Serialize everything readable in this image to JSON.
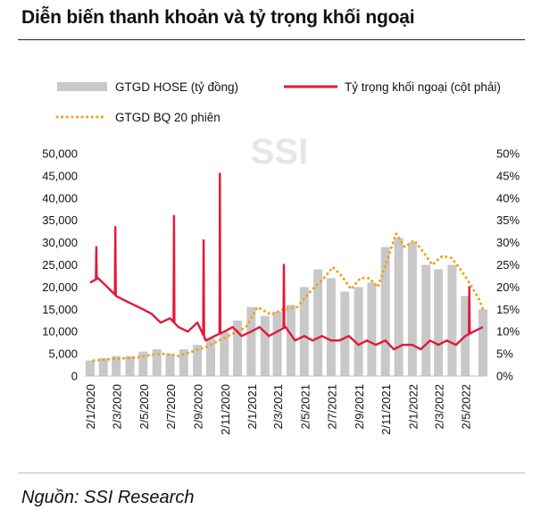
{
  "title": "Diễn biến thanh khoản và tỷ trọng khối ngoại",
  "source": "Nguồn: SSI Research",
  "watermark": "SSI",
  "colors": {
    "bars": "#c8c8c8",
    "line": "#e0193b",
    "dots": "#f0a020",
    "text": "#111111"
  },
  "chart_data": {
    "type": "bar",
    "combo": [
      "bar",
      "line",
      "dotted-line"
    ],
    "x_tick_labels": [
      "2/1/2020",
      "2/3/2020",
      "2/5/2020",
      "2/7/2020",
      "2/9/2020",
      "2/11/2020",
      "2/1/2021",
      "2/3/2021",
      "2/5/2021",
      "2/7/2021",
      "2/9/2021",
      "2/11/2021",
      "2/1/2022",
      "2/3/2022",
      "2/5/2022"
    ],
    "x_tick_dates": [
      "2020-01-02",
      "2020-03-02",
      "2020-05-02",
      "2020-07-02",
      "2020-09-02",
      "2020-11-02",
      "2021-01-02",
      "2021-03-02",
      "2021-05-02",
      "2021-07-02",
      "2021-09-02",
      "2021-11-02",
      "2022-01-02",
      "2022-03-02",
      "2022-05-02"
    ],
    "x_range": [
      "2020-01-02",
      "2022-06-10"
    ],
    "y_left": {
      "ticks": [
        "0",
        "5,000",
        "10,000",
        "15,000",
        "20,000",
        "25,000",
        "30,000",
        "35,000",
        "40,000",
        "45,000",
        "50,000"
      ],
      "range": [
        0,
        50000
      ]
    },
    "y_right": {
      "ticks": [
        "0%",
        "5%",
        "10%",
        "15%",
        "20%",
        "25%",
        "30%",
        "35%",
        "40%",
        "45%",
        "50%"
      ],
      "range": [
        0,
        50
      ]
    },
    "legend": {
      "position": "top",
      "items": [
        "GTGD HOSE (tỷ đồng)",
        "Tỷ trọng khối ngoại (cột phải)",
        "GTGD BQ 20 phiên"
      ]
    },
    "series": [
      {
        "name": "GTGD HOSE (tỷ đồng)",
        "axis": "left",
        "kind": "bar",
        "x": [
          "2020-01-02",
          "2020-02-01",
          "2020-03-01",
          "2020-04-01",
          "2020-05-01",
          "2020-06-01",
          "2020-07-01",
          "2020-08-01",
          "2020-09-01",
          "2020-10-01",
          "2020-11-01",
          "2020-12-01",
          "2021-01-01",
          "2021-02-01",
          "2021-03-01",
          "2021-04-01",
          "2021-05-01",
          "2021-06-01",
          "2021-07-01",
          "2021-08-01",
          "2021-09-01",
          "2021-10-01",
          "2021-11-01",
          "2021-12-01",
          "2022-01-01",
          "2022-02-01",
          "2022-03-01",
          "2022-04-01",
          "2022-05-01",
          "2022-06-10"
        ],
        "values": [
          3500,
          4000,
          4500,
          4500,
          5500,
          6000,
          5000,
          6000,
          7000,
          8500,
          10000,
          12500,
          15500,
          13500,
          14500,
          16000,
          20000,
          24000,
          22000,
          19000,
          20000,
          21000,
          29000,
          31000,
          30000,
          25000,
          24000,
          25000,
          18000,
          15000
        ]
      },
      {
        "name": "GTGD BQ 20 phiên",
        "axis": "left",
        "kind": "dotted-line",
        "x": [
          "2020-01-10",
          "2020-02-15",
          "2020-03-20",
          "2020-04-20",
          "2020-05-20",
          "2020-06-20",
          "2020-07-20",
          "2020-08-20",
          "2020-09-20",
          "2020-10-20",
          "2020-11-20",
          "2020-12-20",
          "2021-01-15",
          "2021-02-15",
          "2021-03-15",
          "2021-04-15",
          "2021-05-15",
          "2021-06-15",
          "2021-07-05",
          "2021-07-25",
          "2021-08-15",
          "2021-09-05",
          "2021-09-25",
          "2021-10-15",
          "2021-11-05",
          "2021-11-25",
          "2021-12-15",
          "2022-01-05",
          "2022-01-25",
          "2022-02-15",
          "2022-03-10",
          "2022-03-31",
          "2022-04-20",
          "2022-05-10",
          "2022-05-31",
          "2022-06-10"
        ],
        "values": [
          3500,
          3800,
          4000,
          4200,
          4800,
          5000,
          4500,
          5500,
          6500,
          8000,
          9500,
          11000,
          15500,
          13800,
          15000,
          15500,
          19000,
          22000,
          24500,
          22500,
          19500,
          22000,
          22000,
          20000,
          26000,
          32000,
          29000,
          30500,
          28000,
          25000,
          27000,
          26500,
          24000,
          21000,
          17500,
          15000
        ]
      },
      {
        "name": "Tỷ trọng khối ngoại (cột phải)",
        "axis": "right",
        "kind": "line",
        "x": [
          "2020-01-02",
          "2020-01-20",
          "2020-02-10",
          "2020-03-01",
          "2020-03-20",
          "2020-04-10",
          "2020-05-01",
          "2020-05-20",
          "2020-06-10",
          "2020-07-01",
          "2020-07-20",
          "2020-08-10",
          "2020-09-01",
          "2020-09-20",
          "2020-10-10",
          "2020-11-01",
          "2020-11-20",
          "2020-12-10",
          "2021-01-01",
          "2021-01-20",
          "2021-02-10",
          "2021-03-01",
          "2021-03-20",
          "2021-04-10",
          "2021-05-01",
          "2021-05-20",
          "2021-06-10",
          "2021-07-01",
          "2021-07-20",
          "2021-08-10",
          "2021-09-01",
          "2021-09-20",
          "2021-10-10",
          "2021-11-01",
          "2021-11-20",
          "2021-12-10",
          "2022-01-01",
          "2022-01-20",
          "2022-02-10",
          "2022-03-01",
          "2022-03-20",
          "2022-04-10",
          "2022-05-01",
          "2022-05-20",
          "2022-06-10"
        ],
        "values": [
          21,
          22,
          20,
          18,
          17,
          16,
          15,
          14,
          12,
          13,
          11,
          10,
          12,
          8,
          9,
          10,
          11,
          9,
          10,
          11,
          9,
          10,
          11,
          8,
          9,
          8,
          9,
          8,
          8,
          9,
          7,
          8,
          7,
          8,
          6,
          7,
          7,
          6,
          8,
          7,
          8,
          7,
          9,
          10,
          11
        ],
        "spikes": [
          {
            "x": "2020-01-16",
            "value": 29
          },
          {
            "x": "2020-02-28",
            "value": 33.5
          },
          {
            "x": "2020-07-10",
            "value": 36
          },
          {
            "x": "2020-09-15",
            "value": 30.5
          },
          {
            "x": "2020-10-22",
            "value": 45.5
          },
          {
            "x": "2021-03-16",
            "value": 25
          },
          {
            "x": "2022-05-10",
            "value": 20
          }
        ]
      }
    ]
  }
}
